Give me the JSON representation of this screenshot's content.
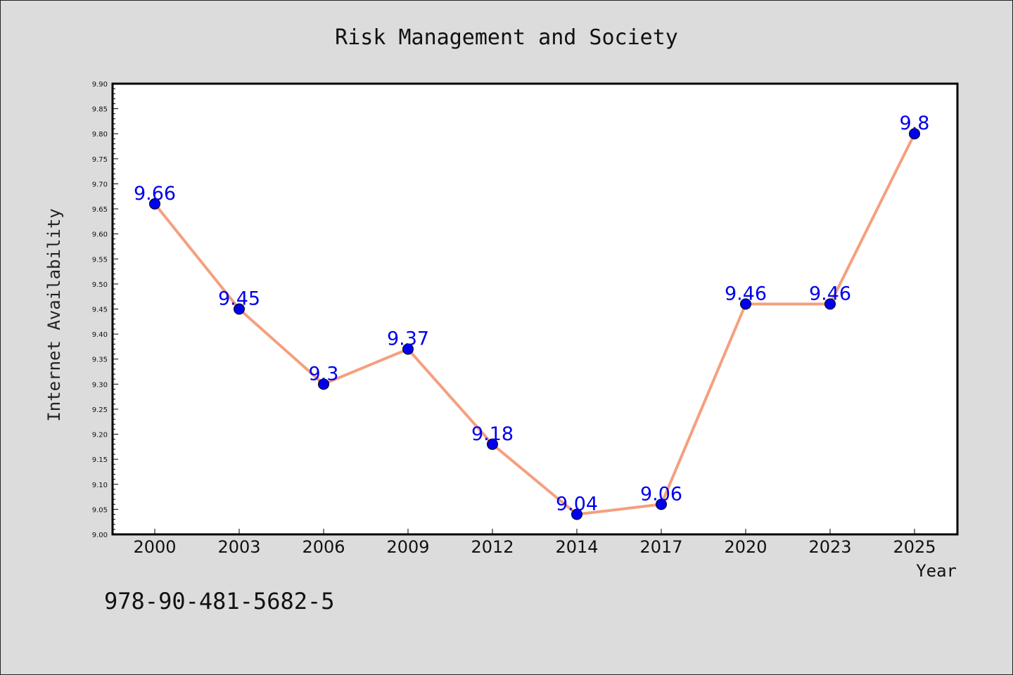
{
  "chart_data": {
    "type": "line",
    "title": "Risk Management and Society",
    "xlabel": "Year",
    "ylabel": "Internet Availability",
    "categories": [
      "2000",
      "2003",
      "2006",
      "2009",
      "2012",
      "2014",
      "2017",
      "2020",
      "2023",
      "2025"
    ],
    "series": [
      {
        "values": [
          9.66,
          9.45,
          9.3,
          9.37,
          9.18,
          9.04,
          9.06,
          9.46,
          9.46,
          9.8
        ]
      }
    ],
    "data_labels": [
      "9.66",
      "9.45",
      "9.3",
      "9.37",
      "9.18",
      "9.04",
      "9.06",
      "9.46",
      "9.46",
      "9.8"
    ],
    "ylim": [
      9.0,
      9.9
    ],
    "yticks": [
      "9.00",
      "9.05",
      "9.10",
      "9.15",
      "9.20",
      "9.25",
      "9.30",
      "9.35",
      "9.40",
      "9.45",
      "9.50",
      "9.55",
      "9.60",
      "9.65",
      "9.70",
      "9.75",
      "9.80",
      "9.85",
      "9.90"
    ],
    "grid": false,
    "line_color": "#f4a07e",
    "marker_color": "#0000ee",
    "label_color": "#0000ee",
    "background": "#dcdcdc",
    "plot_background": "#ffffff"
  },
  "footer": {
    "isbn": "978-90-481-5682-5"
  }
}
